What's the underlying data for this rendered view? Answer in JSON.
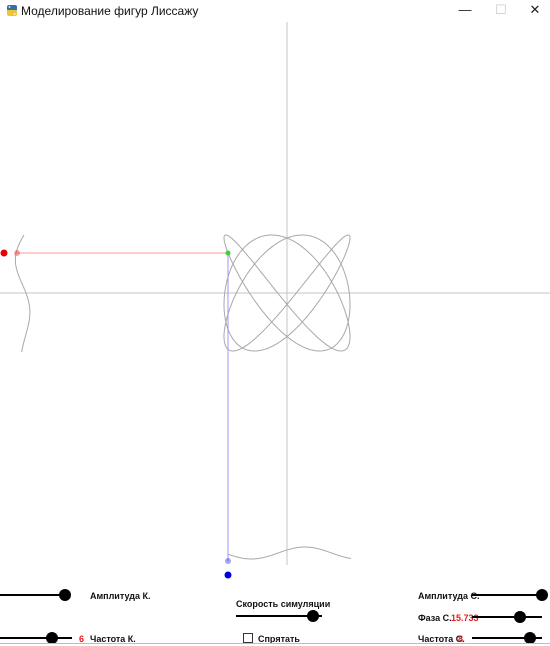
{
  "window": {
    "title": "Моделирование фигур Лиссажу",
    "minimize_glyph": "—",
    "maximize_glyph": "☐",
    "close_glyph": "✕"
  },
  "controls": {
    "amplitude_k": {
      "label": "Амплитуда К.",
      "level": 0.93
    },
    "frequency_k": {
      "label": "Частота К.",
      "value": "6",
      "level": 0.72
    },
    "simulation_speed": {
      "label": "Скорость симуляции",
      "level": 0.9
    },
    "hide": {
      "label": "Спрятать",
      "checked": false
    },
    "amplitude_s": {
      "label": "Амплитуда С.",
      "level": 1.0
    },
    "phase_s": {
      "label": "Фаза С.",
      "value": "15.733",
      "level": 0.68
    },
    "frequency_s": {
      "label": "Частота С.",
      "value": "8",
      "level": 0.83
    }
  },
  "colors": {
    "axis": "#c4c4c4",
    "curve": "#a8a8a8",
    "horizontal_guide": "#ff9a9a",
    "vertical_guide": "#9a9aff",
    "point_red": "#e60000",
    "point_blue": "#0000e6",
    "point_green": "#3ccf3c"
  }
}
